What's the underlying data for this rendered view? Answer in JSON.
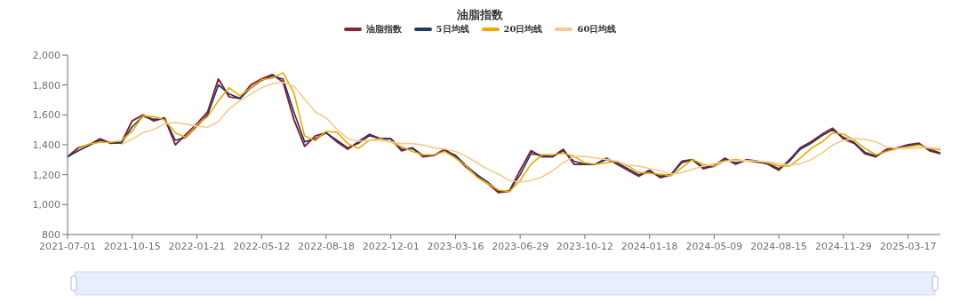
{
  "chart_data": {
    "type": "line",
    "title": "油脂指数",
    "legend": "top",
    "categories": [
      "2021-07-01",
      null,
      null,
      null,
      null,
      null,
      "2021-10-15",
      null,
      null,
      null,
      null,
      null,
      "2022-01-21",
      null,
      null,
      null,
      null,
      null,
      "2022-05-12",
      null,
      null,
      null,
      null,
      null,
      "2022-08-18",
      null,
      null,
      null,
      null,
      null,
      "2022-12-01",
      null,
      null,
      null,
      null,
      null,
      "2023-03-16",
      null,
      null,
      null,
      null,
      null,
      "2023-06-29",
      null,
      null,
      null,
      null,
      null,
      "2023-10-12",
      null,
      null,
      null,
      null,
      null,
      "2024-01-18",
      null,
      null,
      null,
      null,
      null,
      "2024-05-09",
      null,
      null,
      null,
      null,
      null,
      "2024-08-15",
      null,
      null,
      null,
      null,
      null,
      "2024-11-29",
      null,
      null,
      null,
      null,
      null,
      "2025-03-17",
      null,
      null,
      null
    ],
    "ylim": [
      800,
      2000
    ],
    "yticks": [
      {
        "value": 800,
        "label": "800"
      },
      {
        "value": 1000,
        "label": "1,000"
      },
      {
        "value": 1200,
        "label": "1,200"
      },
      {
        "value": 1400,
        "label": "1,400"
      },
      {
        "value": 1600,
        "label": "1,600"
      },
      {
        "value": 1800,
        "label": "1,800"
      },
      {
        "value": 2000,
        "label": "2,000"
      }
    ],
    "series": [
      {
        "name": "油脂指数",
        "color": "#8b2332",
        "values": [
          1320,
          1380,
          1400,
          1440,
          1410,
          1415,
          1560,
          1600,
          1560,
          1580,
          1400,
          1470,
          1540,
          1620,
          1840,
          1720,
          1710,
          1800,
          1840,
          1870,
          1820,
          1570,
          1390,
          1460,
          1480,
          1420,
          1370,
          1420,
          1470,
          1440,
          1440,
          1360,
          1380,
          1320,
          1330,
          1370,
          1320,
          1250,
          1190,
          1140,
          1080,
          1090,
          1230,
          1360,
          1320,
          1320,
          1370,
          1270,
          1270,
          1270,
          1310,
          1270,
          1230,
          1190,
          1230,
          1180,
          1200,
          1290,
          1300,
          1240,
          1260,
          1310,
          1270,
          1300,
          1290,
          1270,
          1230,
          1300,
          1380,
          1420,
          1470,
          1510,
          1440,
          1410,
          1340,
          1320,
          1370,
          1380,
          1400,
          1410,
          1360,
          1340
        ]
      },
      {
        "name": "5日均线",
        "color": "#1f3864",
        "values": [
          1320,
          1360,
          1395,
          1430,
          1415,
          1412,
          1520,
          1590,
          1570,
          1575,
          1430,
          1450,
          1525,
          1600,
          1800,
          1740,
          1710,
          1780,
          1830,
          1860,
          1840,
          1620,
          1420,
          1440,
          1480,
          1430,
          1380,
          1410,
          1460,
          1445,
          1440,
          1370,
          1375,
          1330,
          1330,
          1360,
          1330,
          1260,
          1200,
          1150,
          1090,
          1090,
          1200,
          1340,
          1330,
          1320,
          1360,
          1290,
          1270,
          1270,
          1300,
          1280,
          1240,
          1200,
          1220,
          1190,
          1200,
          1280,
          1300,
          1250,
          1255,
          1300,
          1280,
          1295,
          1283,
          1275,
          1240,
          1290,
          1370,
          1410,
          1460,
          1500,
          1450,
          1415,
          1350,
          1325,
          1360,
          1375,
          1395,
          1405,
          1370,
          1345
        ]
      },
      {
        "name": "20日均线",
        "color": "#f0a800",
        "values": [
          null,
          1375,
          1405,
          1416,
          1416,
          1427,
          1491,
          1594,
          1588,
          1566,
          1480,
          1448,
          1534,
          1588,
          1695,
          1781,
          1727,
          1781,
          1835,
          1846,
          1882,
          1749,
          1459,
          1427,
          1491,
          1484,
          1408,
          1376,
          1430,
          1441,
          1419,
          1387,
          1355,
          1333,
          1333,
          1355,
          1312,
          1258,
          1183,
          1140,
          1097,
          1086,
          1161,
          1269,
          1333,
          1333,
          1344,
          1322,
          1280,
          1269,
          1280,
          1290,
          1258,
          1215,
          1208,
          1204,
          1193,
          1247,
          1301,
          1269,
          1258,
          1290,
          1301,
          1290,
          1290,
          1280,
          1258,
          1258,
          1312,
          1376,
          1419,
          1479,
          1473,
          1430,
          1376,
          1333,
          1355,
          1376,
          1387,
          1398,
          1376,
          1365
        ]
      },
      {
        "name": "60日均线",
        "color": "#f5cb8f",
        "values": [
          null,
          null,
          null,
          null,
          null,
          1401,
          1438,
          1481,
          1502,
          1539,
          1549,
          1539,
          1524,
          1517,
          1556,
          1642,
          1695,
          1738,
          1781,
          1809,
          1818,
          1792,
          1706,
          1620,
          1580,
          1505,
          1441,
          1424,
          1430,
          1430,
          1419,
          1408,
          1408,
          1398,
          1380,
          1372,
          1355,
          1322,
          1280,
          1236,
          1204,
          1161,
          1150,
          1161,
          1183,
          1226,
          1280,
          1322,
          1322,
          1312,
          1301,
          1290,
          1264,
          1258,
          1241,
          1226,
          1204,
          1215,
          1236,
          1258,
          1273,
          1290,
          1294,
          1294,
          1290,
          1286,
          1273,
          1264,
          1273,
          1301,
          1344,
          1398,
          1430,
          1441,
          1436,
          1419,
          1387,
          1376,
          1376,
          1380,
          1380,
          1376
        ]
      }
    ]
  }
}
